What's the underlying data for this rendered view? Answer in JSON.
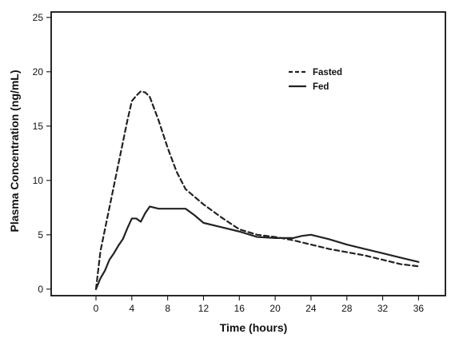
{
  "chart_data": {
    "type": "line",
    "xlabel": "Time (hours)",
    "ylabel": "Plasma Concentration (ng/mL)",
    "xlim": [
      -5,
      39
    ],
    "ylim": [
      -0.6,
      25.5
    ],
    "x_ticks": [
      0,
      4,
      8,
      12,
      16,
      20,
      24,
      28,
      32,
      36
    ],
    "y_ticks": [
      0,
      5,
      10,
      15,
      20,
      25
    ],
    "grid": false,
    "legend_position": "top-right",
    "series": [
      {
        "name": "Fasted",
        "line_style": "dashed",
        "color": "#222222",
        "x": [
          0,
          0.5,
          1,
          1.5,
          2,
          2.5,
          3,
          3.5,
          4,
          4.5,
          5,
          5.5,
          6,
          7,
          8,
          9,
          10,
          12,
          14,
          16,
          18,
          20,
          22,
          24,
          26,
          28,
          30,
          32,
          34,
          36
        ],
        "y": [
          0,
          3.5,
          5.5,
          7.5,
          9.5,
          11.5,
          13.5,
          15.5,
          17.3,
          17.8,
          18.2,
          18.1,
          17.7,
          15.5,
          13.0,
          10.8,
          9.2,
          7.8,
          6.6,
          5.5,
          5.0,
          4.8,
          4.5,
          4.1,
          3.7,
          3.4,
          3.1,
          2.7,
          2.3,
          2.1
        ]
      },
      {
        "name": "Fed",
        "line_style": "solid",
        "color": "#222222",
        "x": [
          0,
          0.5,
          1,
          1.5,
          2,
          2.5,
          3,
          3.5,
          4,
          4.5,
          5,
          5.5,
          6,
          7,
          8,
          9,
          10,
          11,
          12,
          14,
          16,
          18,
          20,
          22,
          23,
          24,
          26,
          28,
          30,
          32,
          34,
          36
        ],
        "y": [
          0,
          1.0,
          1.7,
          2.7,
          3.3,
          4.0,
          4.6,
          5.6,
          6.5,
          6.5,
          6.2,
          7.0,
          7.6,
          7.4,
          7.4,
          7.4,
          7.4,
          6.8,
          6.1,
          5.7,
          5.3,
          4.8,
          4.7,
          4.7,
          4.9,
          5.0,
          4.6,
          4.1,
          3.7,
          3.3,
          2.9,
          2.5
        ]
      }
    ]
  }
}
